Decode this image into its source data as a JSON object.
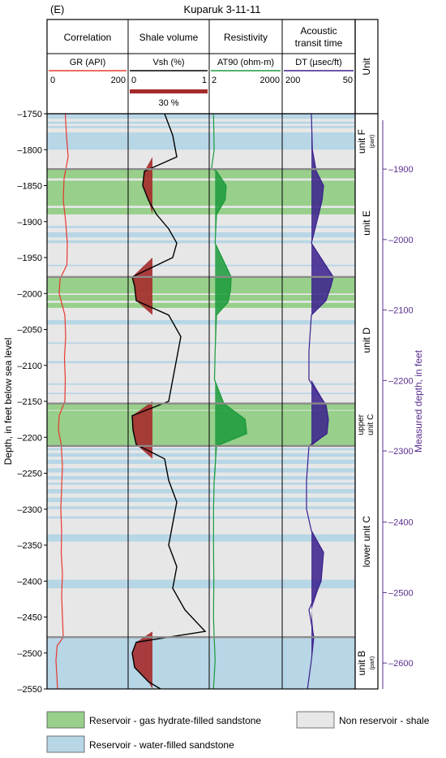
{
  "panel_label": "(E)",
  "title": "Kuparuk 3-11-11",
  "unit_header": "Unit",
  "tracks": [
    {
      "name": "Correlation",
      "curve": "GR (API)",
      "scale_left": "0",
      "scale_right": "200",
      "color": "#e8382e"
    },
    {
      "name": "Shale volume",
      "curve": "Vsh (%)",
      "scale_left": "0",
      "scale_right": "1",
      "color": "#000000",
      "cutoff_label": "30 %",
      "cutoff_color": "#a52a2a"
    },
    {
      "name": "Resistivity",
      "curve": "AT90 (ohm-m)",
      "scale_left": "2",
      "scale_right": "2000",
      "color": "#1a9a3a"
    },
    {
      "name_line1": "Acoustic",
      "name_line2": "transit time",
      "curve": "DT (µsec/ft)",
      "scale_left": "200",
      "scale_right": "50",
      "color": "#3a1f8c"
    }
  ],
  "units": [
    {
      "label": "unit F",
      "sub": "(part)",
      "top": -1750,
      "bottom": -1827
    },
    {
      "label": "unit E",
      "sub": "",
      "top": -1827,
      "bottom": -1977
    },
    {
      "label": "unit D",
      "sub": "",
      "top": -1977,
      "bottom": -2153
    },
    {
      "label_line1": "upper",
      "label_line2": "unit C",
      "top": -2153,
      "bottom": -2212
    },
    {
      "label": "lower unit C",
      "sub": "",
      "top": -2212,
      "bottom": -2478
    },
    {
      "label": "unit B",
      "sub": "(part)",
      "top": -2478,
      "bottom": -2550
    }
  ],
  "colors": {
    "hydrate": "#97cf8b",
    "water": "#b7d6e6",
    "shale": "#e7e7e7",
    "boundary": "#8a8a8a",
    "md_axis": "#5a2d91",
    "vsh_fill": "#a52a2a",
    "res_fill": "#1a9a3a",
    "dt_fill": "#3a1f8c"
  },
  "legend": {
    "hydrate": "Reservoir - gas hydrate-filled sandstone",
    "shale": "Non reservoir - shale",
    "water": "Reservoir - water-filled sandstone"
  },
  "chart_data": {
    "type": "line",
    "left_axis": {
      "label": "Depth, in feet below sea level",
      "range": [
        -1750,
        -2550
      ],
      "ticks": [
        -1750,
        -1800,
        -1850,
        -1900,
        -1950,
        -2000,
        -2050,
        -2100,
        -2150,
        -2200,
        -2250,
        -2300,
        -2350,
        -2400,
        -2450,
        -2500,
        -2550
      ]
    },
    "right_axis": {
      "label": "Measured depth, in feet",
      "ticks": [
        1900,
        2000,
        2100,
        2200,
        2300,
        2400,
        2500,
        2600
      ],
      "tick_depth_ss": [
        -1827,
        -1925,
        -2023,
        -2121,
        -2219,
        -2318,
        -2416,
        -2514
      ]
    },
    "hydrate_intervals": [
      [
        -1827,
        -1840
      ],
      [
        -1843,
        -1878
      ],
      [
        -1881,
        -1890
      ],
      [
        -1977,
        -2000
      ],
      [
        -2002,
        -2010
      ],
      [
        -2013,
        -2020
      ],
      [
        -2153,
        -2162
      ],
      [
        -2163,
        -2212
      ]
    ],
    "water_intervals": [
      [
        -1750,
        -1757
      ],
      [
        -1761,
        -1764
      ],
      [
        -1767,
        -1770
      ],
      [
        -1776,
        -1800
      ],
      [
        -1906,
        -1909
      ],
      [
        -1915,
        -1922
      ],
      [
        -1926,
        -1930
      ],
      [
        -1960,
        -1962
      ],
      [
        -2037,
        -2043
      ],
      [
        -2068,
        -2070
      ],
      [
        -2094,
        -2097
      ],
      [
        -2125,
        -2127
      ],
      [
        -2138,
        -2140
      ],
      [
        -2215,
        -2218
      ],
      [
        -2222,
        -2227
      ],
      [
        -2231,
        -2237
      ],
      [
        -2243,
        -2249
      ],
      [
        -2254,
        -2259
      ],
      [
        -2263,
        -2266
      ],
      [
        -2272,
        -2278
      ],
      [
        -2284,
        -2290
      ],
      [
        -2296,
        -2300
      ],
      [
        -2310,
        -2313
      ],
      [
        -2335,
        -2345
      ],
      [
        -2398,
        -2410
      ],
      [
        -2478,
        -2550
      ]
    ],
    "series": [
      {
        "name": "GR (API)",
        "depth": [
          -1750,
          -1780,
          -1810,
          -1840,
          -1870,
          -1900,
          -1930,
          -1960,
          -1980,
          -2000,
          -2030,
          -2060,
          -2090,
          -2120,
          -2150,
          -2170,
          -2190,
          -2210,
          -2240,
          -2270,
          -2300,
          -2330,
          -2360,
          -2390,
          -2420,
          -2450,
          -2478,
          -2490,
          -2510,
          -2530,
          -2550
        ],
        "values": [
          45,
          48,
          52,
          42,
          40,
          46,
          50,
          49,
          32,
          30,
          44,
          46,
          43,
          45,
          44,
          30,
          28,
          35,
          38,
          36,
          34,
          36,
          35,
          38,
          36,
          38,
          40,
          25,
          22,
          24,
          26
        ]
      },
      {
        "name": "Vsh (%)",
        "depth": [
          -1750,
          -1780,
          -1810,
          -1830,
          -1850,
          -1870,
          -1890,
          -1910,
          -1930,
          -1950,
          -1977,
          -1990,
          -2010,
          -2030,
          -2060,
          -2090,
          -2120,
          -2150,
          -2170,
          -2190,
          -2210,
          -2230,
          -2260,
          -2290,
          -2320,
          -2350,
          -2380,
          -2410,
          -2440,
          -2470,
          -2485,
          -2500,
          -2520,
          -2540,
          -2550
        ],
        "values": [
          0.45,
          0.55,
          0.6,
          0.2,
          0.18,
          0.25,
          0.35,
          0.5,
          0.6,
          0.55,
          0.05,
          0.08,
          0.1,
          0.5,
          0.65,
          0.6,
          0.55,
          0.5,
          0.05,
          0.06,
          0.1,
          0.45,
          0.5,
          0.6,
          0.55,
          0.5,
          0.6,
          0.55,
          0.7,
          0.95,
          0.1,
          0.05,
          0.08,
          0.25,
          0.4
        ]
      },
      {
        "name": "AT90 (ohm-m)",
        "depth": [
          -1750,
          -1800,
          -1826,
          -1830,
          -1850,
          -1870,
          -1890,
          -1930,
          -1977,
          -1995,
          -2012,
          -2030,
          -2080,
          -2120,
          -2153,
          -2175,
          -2195,
          -2212,
          -2260,
          -2300,
          -2350,
          -2400,
          -2450,
          -2478,
          -2510,
          -2550
        ],
        "values": [
          3,
          3.2,
          2.5,
          4,
          10,
          9,
          4,
          3.5,
          16,
          15,
          12,
          4,
          3.5,
          3.3,
          8,
          60,
          70,
          4,
          3.2,
          3,
          3,
          3.1,
          3,
          3.2,
          3.5,
          3
        ]
      },
      {
        "name": "DT (µsec/ft)",
        "depth": [
          -1750,
          -1800,
          -1830,
          -1850,
          -1870,
          -1890,
          -1930,
          -1977,
          -1990,
          -2010,
          -2030,
          -2080,
          -2120,
          -2155,
          -2175,
          -2195,
          -2212,
          -2260,
          -2300,
          -2330,
          -2360,
          -2400,
          -2440,
          -2478,
          -2510,
          -2550
        ],
        "values": [
          140,
          138,
          130,
          115,
          118,
          125,
          140,
          95,
          100,
          110,
          140,
          145,
          145,
          110,
          105,
          108,
          145,
          150,
          150,
          140,
          115,
          120,
          145,
          135,
          140,
          148
        ]
      }
    ]
  }
}
